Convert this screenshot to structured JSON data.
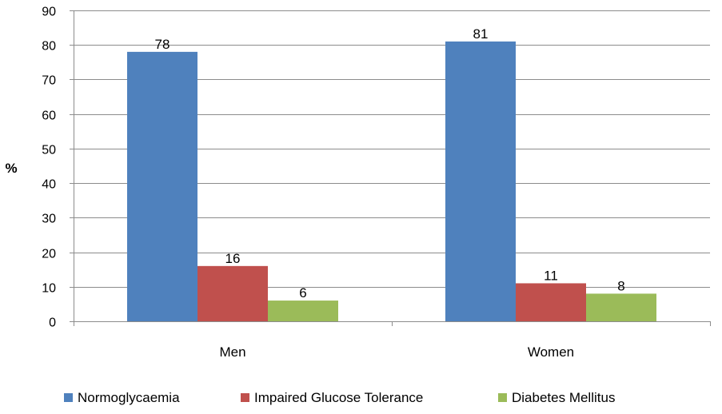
{
  "chart_data": {
    "type": "bar",
    "title": "",
    "xlabel": "",
    "ylabel": "%",
    "ylim": [
      0,
      90
    ],
    "yticks": [
      0,
      10,
      20,
      30,
      40,
      50,
      60,
      70,
      80,
      90
    ],
    "grid": true,
    "legend_position": "bottom",
    "categories": [
      "Men",
      "Women"
    ],
    "series": [
      {
        "name": "Normoglycaemia",
        "values": [
          78,
          81
        ],
        "color": "#4f81bd"
      },
      {
        "name": "Impaired Glucose Tolerance",
        "values": [
          16,
          11
        ],
        "color": "#c0504d"
      },
      {
        "name": "Diabetes Mellitus",
        "values": [
          6,
          8
        ],
        "color": "#9bbb59"
      }
    ]
  }
}
